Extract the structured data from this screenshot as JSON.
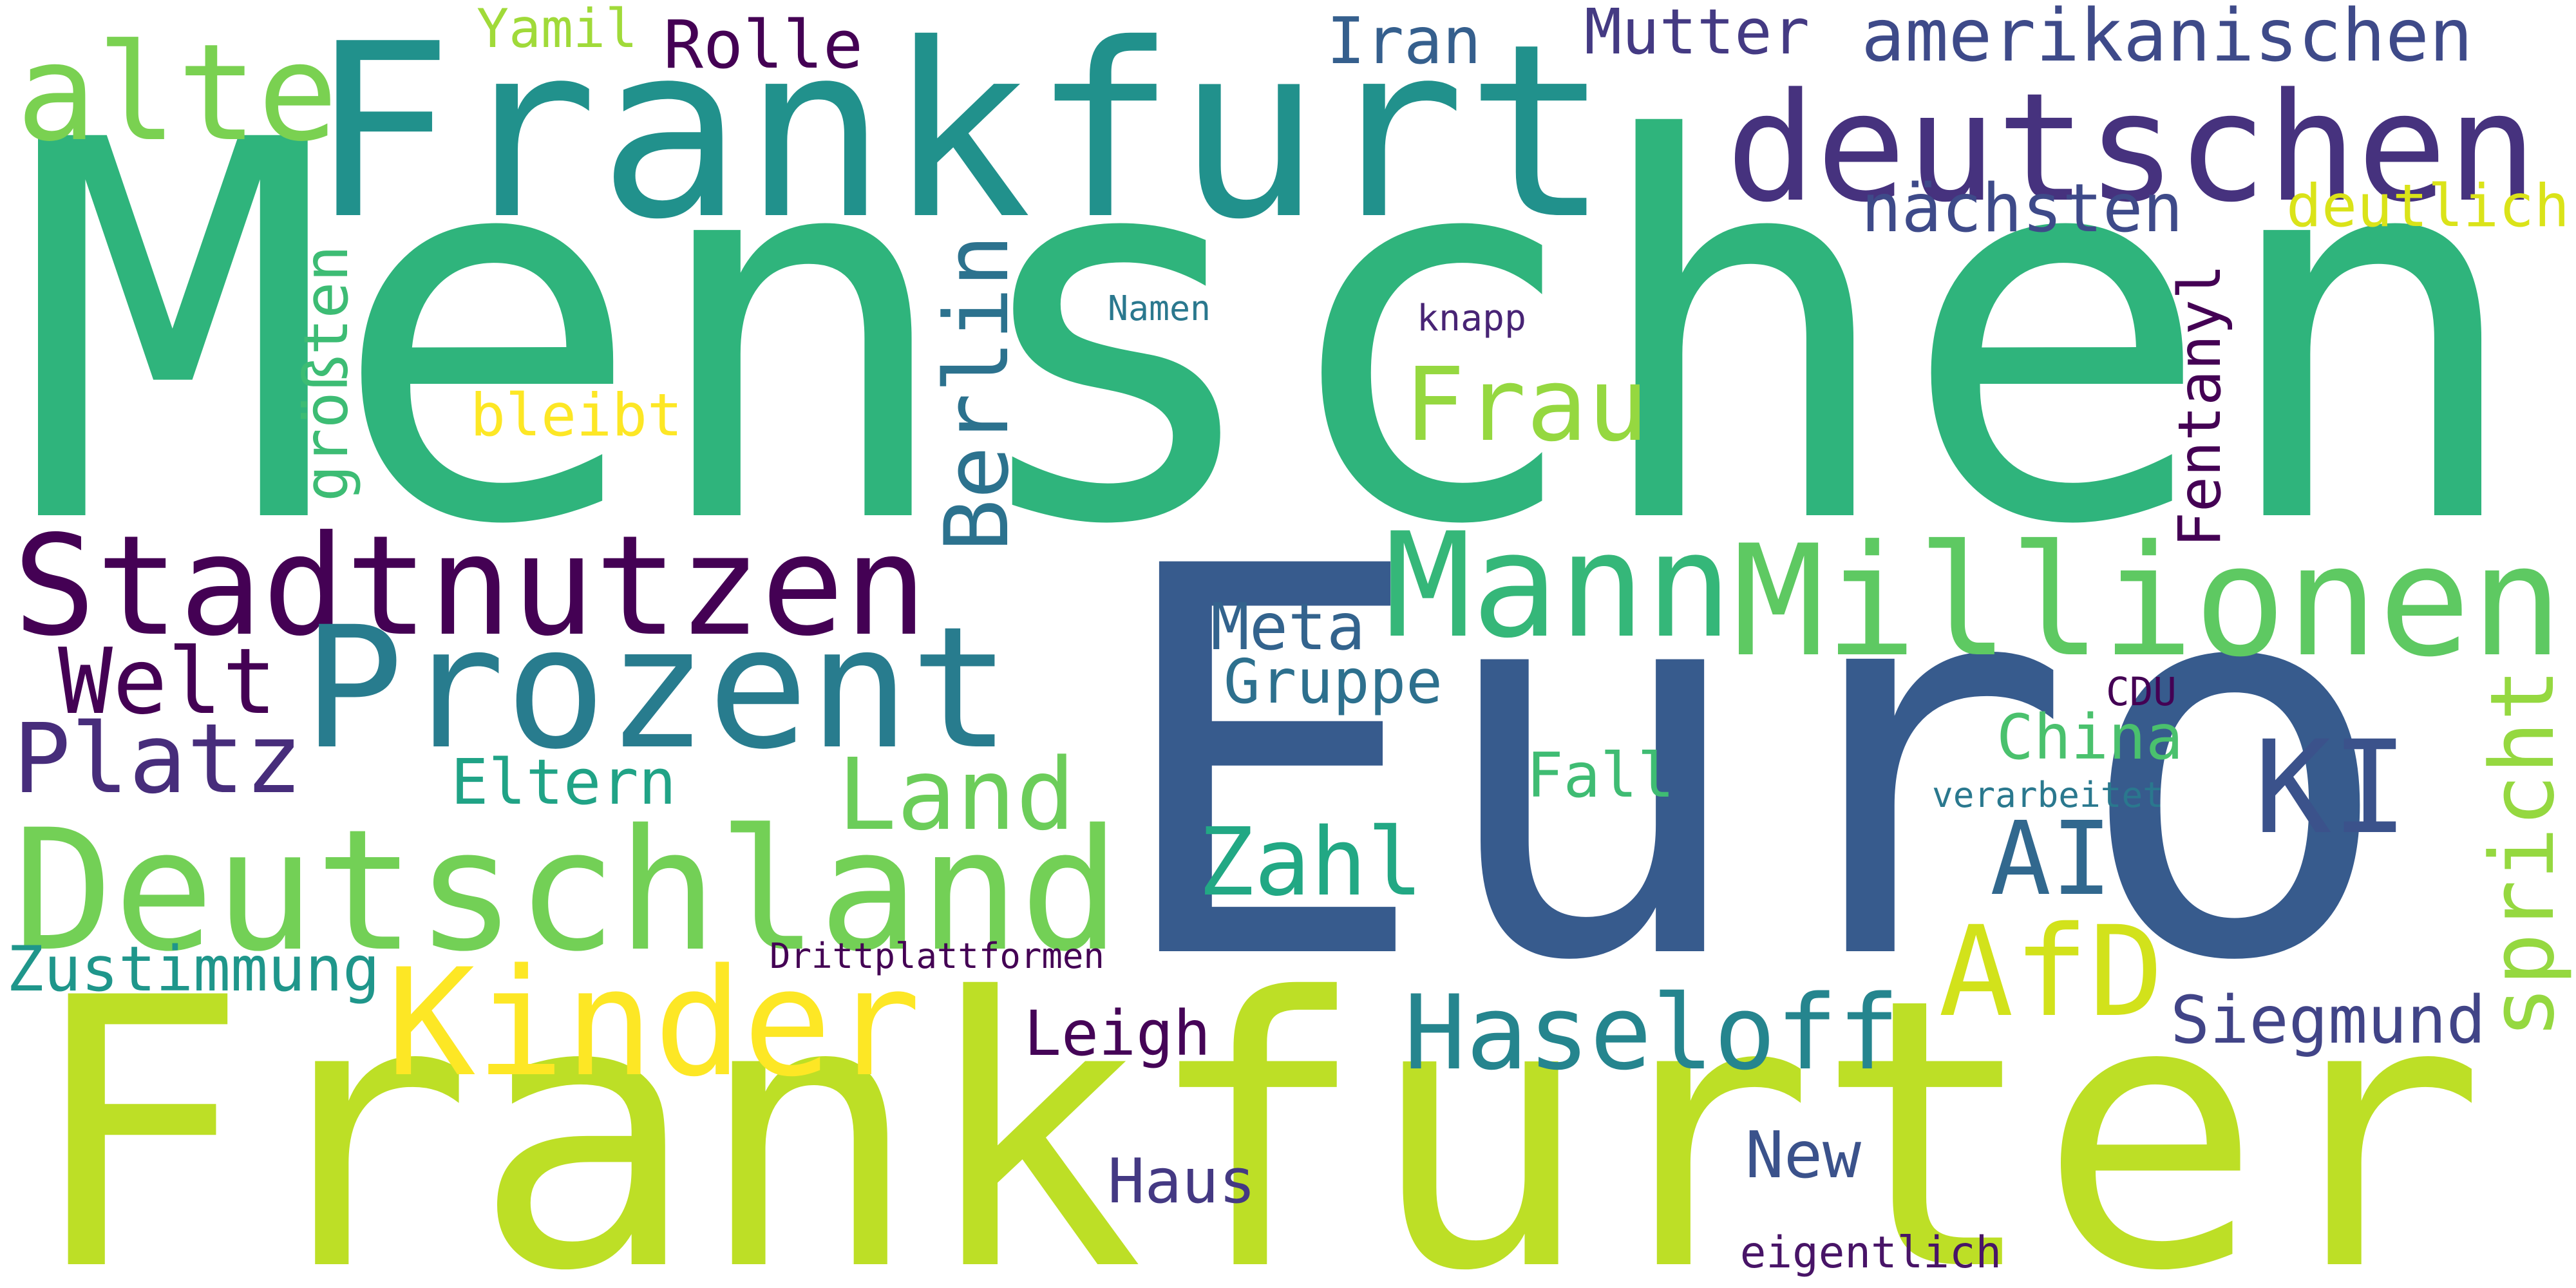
{
  "word_cloud": {
    "background": "#ffffff",
    "words": [
      {
        "text": "Menschen",
        "weight": 1.0,
        "vertical": false,
        "color": "#2fb47c"
      },
      {
        "text": "Frankfurter",
        "weight": 0.84,
        "vertical": false,
        "color": "#bddf26"
      },
      {
        "text": "Euro",
        "weight": 0.97,
        "vertical": false,
        "color": "#375b8d"
      },
      {
        "text": "Frankfurt",
        "weight": 0.58,
        "vertical": false,
        "color": "#21918c"
      },
      {
        "text": "deutschen",
        "weight": 0.42,
        "vertical": false,
        "color": "#46327e"
      },
      {
        "text": "Stadtnutzen",
        "weight": 0.35,
        "vertical": false,
        "color": "#440154"
      },
      {
        "text": "Millionen",
        "weight": 0.35,
        "vertical": false,
        "color": "#5ec962"
      },
      {
        "text": "Deutschland",
        "weight": 0.36,
        "vertical": false,
        "color": "#73d056"
      },
      {
        "text": "Prozent",
        "weight": 0.34,
        "vertical": false,
        "color": "#287c8e"
      },
      {
        "text": "Mann",
        "weight": 0.32,
        "vertical": false,
        "color": "#35b779"
      },
      {
        "text": "Kinder",
        "weight": 0.3,
        "vertical": false,
        "color": "#fde725"
      },
      {
        "text": "Haseloff",
        "weight": 0.25,
        "vertical": false,
        "color": "#25858e"
      },
      {
        "text": "alte",
        "weight": 0.27,
        "vertical": false,
        "color": "#7ad151"
      },
      {
        "text": "Welt",
        "weight": 0.23,
        "vertical": false,
        "color": "#440154"
      },
      {
        "text": "Platz",
        "weight": 0.23,
        "vertical": false,
        "color": "#472d7b"
      },
      {
        "text": "Land",
        "weight": 0.24,
        "vertical": false,
        "color": "#6ccd5a"
      },
      {
        "text": "Berlin",
        "weight": 0.21,
        "vertical": true,
        "color": "#2c728e"
      },
      {
        "text": "AfD",
        "weight": 0.25,
        "vertical": false,
        "color": "#d2e21b"
      },
      {
        "text": "KI",
        "weight": 0.25,
        "vertical": false,
        "color": "#3b528b"
      },
      {
        "text": "AI",
        "weight": 0.24,
        "vertical": false,
        "color": "#31688e"
      },
      {
        "text": "Zahl",
        "weight": 0.2,
        "vertical": false,
        "color": "#22a884"
      },
      {
        "text": "Frau",
        "weight": 0.2,
        "vertical": false,
        "color": "#95d840"
      },
      {
        "text": "spricht",
        "weight": 0.16,
        "vertical": true,
        "color": "#95d840"
      },
      {
        "text": "Fentanyl",
        "weight": 0.13,
        "vertical": true,
        "color": "#440154"
      },
      {
        "text": "Leigh",
        "weight": 0.15,
        "vertical": false,
        "color": "#450457"
      },
      {
        "text": "Siegmund",
        "weight": 0.15,
        "vertical": false,
        "color": "#414487"
      },
      {
        "text": "New",
        "weight": 0.15,
        "vertical": false,
        "color": "#3b528b"
      },
      {
        "text": "Haus",
        "weight": 0.15,
        "vertical": false,
        "color": "#443983"
      },
      {
        "text": "Rolle",
        "weight": 0.14,
        "vertical": false,
        "color": "#440154"
      },
      {
        "text": "Iran",
        "weight": 0.14,
        "vertical": false,
        "color": "#355f8d"
      },
      {
        "text": "Mutter",
        "weight": 0.14,
        "vertical": false,
        "color": "#443a83"
      },
      {
        "text": "amerikanischen",
        "weight": 0.14,
        "vertical": false,
        "color": "#3e4a89"
      },
      {
        "text": "Yamil",
        "weight": 0.13,
        "vertical": false,
        "color": "#a0da39"
      },
      {
        "text": "nächsten",
        "weight": 0.13,
        "vertical": false,
        "color": "#3e4a89"
      },
      {
        "text": "deutlich",
        "weight": 0.13,
        "vertical": false,
        "color": "#dae319"
      },
      {
        "text": "Meta",
        "weight": 0.13,
        "vertical": false,
        "color": "#33638d"
      },
      {
        "text": "Gruppe",
        "weight": 0.13,
        "vertical": false,
        "color": "#2d708e"
      },
      {
        "text": "China",
        "weight": 0.13,
        "vertical": false,
        "color": "#4ac16d"
      },
      {
        "text": "Fall",
        "weight": 0.13,
        "vertical": false,
        "color": "#3fbc73"
      },
      {
        "text": "Eltern",
        "weight": 0.13,
        "vertical": false,
        "color": "#20a386"
      },
      {
        "text": "Zustimmung",
        "weight": 0.13,
        "vertical": false,
        "color": "#1f968b"
      },
      {
        "text": "bleibt",
        "weight": 0.12,
        "vertical": false,
        "color": "#fde725"
      },
      {
        "text": "größten",
        "weight": 0.1,
        "vertical": true,
        "color": "#3dbc74"
      },
      {
        "text": "Namen",
        "weight": 0.07,
        "vertical": false,
        "color": "#2a788e"
      },
      {
        "text": "knapp",
        "weight": 0.07,
        "vertical": false,
        "color": "#482475"
      },
      {
        "text": "CDU",
        "weight": 0.07,
        "vertical": false,
        "color": "#440154"
      },
      {
        "text": "verarbeitet",
        "weight": 0.07,
        "vertical": false,
        "color": "#2a788e"
      },
      {
        "text": "Drittplattformen",
        "weight": 0.07,
        "vertical": false,
        "color": "#440154"
      },
      {
        "text": "eigentlich",
        "weight": 0.07,
        "vertical": false,
        "color": "#481467"
      }
    ]
  }
}
